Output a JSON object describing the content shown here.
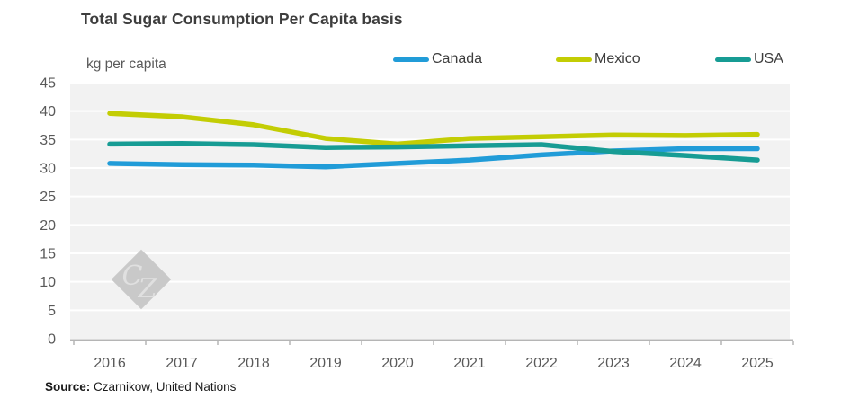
{
  "title": "Total Sugar Consumption Per Capita basis",
  "unit_label": "kg per capita",
  "legend": [
    {
      "label": "Canada",
      "color": "#219CD8"
    },
    {
      "label": "Mexico",
      "color": "#C3CD04"
    },
    {
      "label": "USA",
      "color": "#179C94"
    }
  ],
  "watermark": "CZ",
  "source": {
    "prefix": "Source:",
    "text": " Czarnikow, United Nations"
  },
  "colors": {
    "plot_background": "#f2f2f2",
    "gridline": "#ffffff",
    "axis_line": "#b5b5b5",
    "tick_label": "#595959",
    "title_text": "#3d3d3d",
    "watermark_fill": "#c9c9c9",
    "watermark_text": "#e0e0e0"
  },
  "chart_data": {
    "type": "line",
    "title": "Total Sugar Consumption Per Capita basis",
    "ylabel": "kg per capita",
    "xlabel": "",
    "ylim": [
      0,
      45
    ],
    "ytick_step": 5,
    "grid": true,
    "legend_position": "top",
    "x": [
      2016,
      2017,
      2018,
      2019,
      2020,
      2021,
      2022,
      2023,
      2024,
      2025
    ],
    "series": [
      {
        "name": "Canada",
        "color": "#219CD8",
        "values": [
          30.8,
          30.6,
          30.5,
          30.2,
          30.8,
          31.4,
          32.3,
          33.0,
          33.4,
          33.4
        ]
      },
      {
        "name": "Mexico",
        "color": "#C3CD04",
        "values": [
          39.6,
          39.0,
          37.6,
          35.2,
          34.2,
          35.2,
          35.5,
          35.8,
          35.7,
          35.9
        ]
      },
      {
        "name": "USA",
        "color": "#179C94",
        "values": [
          34.2,
          34.3,
          34.1,
          33.6,
          33.7,
          33.9,
          34.1,
          32.9,
          32.2,
          31.4
        ]
      }
    ]
  }
}
